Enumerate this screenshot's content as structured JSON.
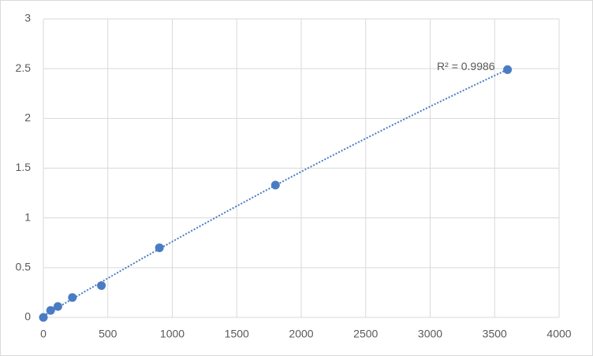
{
  "chart_data": {
    "type": "scatter",
    "x": [
      0,
      56.25,
      112.5,
      225,
      450,
      900,
      1800,
      3600
    ],
    "series": [
      {
        "color": "#4a7cc4",
        "values": [
          0,
          0.07,
          0.11,
          0.2,
          0.32,
          0.7,
          1.33,
          2.49
        ]
      }
    ],
    "xlim": [
      0,
      4000
    ],
    "xticks": [
      0,
      500,
      1000,
      1500,
      2000,
      2500,
      3000,
      3500,
      4000
    ],
    "ylim": [
      0,
      3
    ],
    "yticks": [
      0,
      0.5,
      1,
      1.5,
      2,
      2.5,
      3
    ],
    "grid": true,
    "trendline": "polynomial",
    "trendline_order": 2,
    "annotation": "R² = 0.9986"
  }
}
